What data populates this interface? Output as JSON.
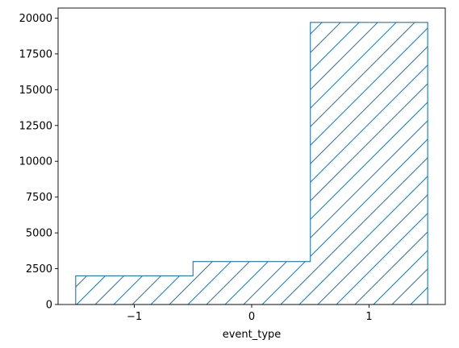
{
  "chart_data": {
    "type": "bar",
    "histtype": "step",
    "fill_pattern": "hatch-diagonal",
    "color": "#1f77b4",
    "bins": [
      {
        "category": -1,
        "left": -1.5,
        "right": -0.5,
        "value": 2000
      },
      {
        "category": 0,
        "left": -0.5,
        "right": 0.5,
        "value": 3000
      },
      {
        "category": 1,
        "left": 0.5,
        "right": 1.5,
        "value": 19700
      }
    ],
    "xlabel": "event_type",
    "ylabel": "",
    "xlim": [
      -1.65,
      1.65
    ],
    "ylim": [
      0,
      20700
    ],
    "xticks": [
      {
        "value": -1,
        "label": "−1"
      },
      {
        "value": 0,
        "label": "0"
      },
      {
        "value": 1,
        "label": "1"
      }
    ],
    "yticks": [
      {
        "value": 0,
        "label": "0"
      },
      {
        "value": 2500,
        "label": "2500"
      },
      {
        "value": 5000,
        "label": "5000"
      },
      {
        "value": 7500,
        "label": "7500"
      },
      {
        "value": 10000,
        "label": "10000"
      },
      {
        "value": 12500,
        "label": "12500"
      },
      {
        "value": 15000,
        "label": "15000"
      },
      {
        "value": 17500,
        "label": "17500"
      },
      {
        "value": 20000,
        "label": "20000"
      }
    ],
    "grid": false,
    "legend": "none"
  }
}
